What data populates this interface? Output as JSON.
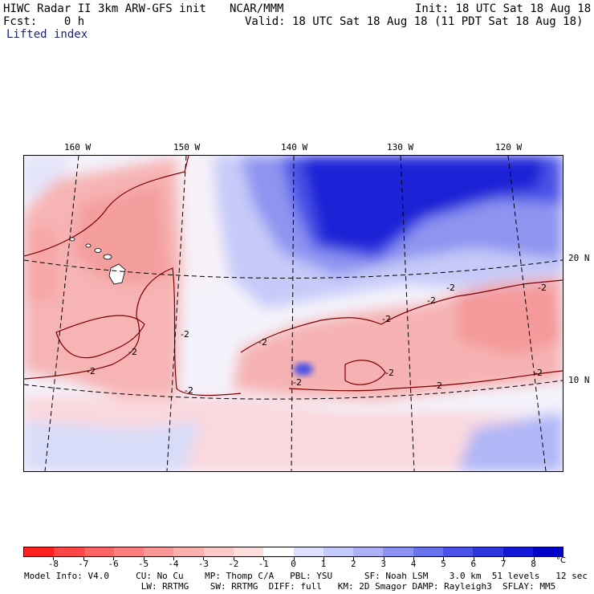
{
  "header": {
    "model_title": "HIWC Radar II 3km ARW-GFS init",
    "org": "NCAR/MMM",
    "init": "Init: 18 UTC Sat 18 Aug 18",
    "fcst": "Fcst:    0 h",
    "valid": "Valid: 18 UTC Sat 18 Aug 18 (11 PDT Sat 18 Aug 18)",
    "field": "Lifted index"
  },
  "map": {
    "longitudes": [
      "160 W",
      "150 W",
      "140 W",
      "130 W",
      "120 W"
    ],
    "latitudes": [
      "20 N",
      "10 N"
    ],
    "contour_value": "-2",
    "contour_color": "#800000",
    "land_fill": "#ffffff"
  },
  "colorbar": {
    "ticks": [
      "-8",
      "-7",
      "-6",
      "-5",
      "-4",
      "-3",
      "-2",
      "-1",
      "0",
      "1",
      "2",
      "3",
      "4",
      "5",
      "6",
      "7",
      "8"
    ],
    "unit": "°C",
    "colors": [
      "#ff2020",
      "#ff4646",
      "#ff6464",
      "#ff7e7e",
      "#fc9898",
      "#fdb0b0",
      "#fdc8c8",
      "#fedede",
      "#ffffff",
      "#dee0fd",
      "#c6c9fb",
      "#adb2f8",
      "#8d93f4",
      "#6b72ee",
      "#4a52e8",
      "#2f36e0",
      "#1218d6",
      "#0000c8"
    ]
  },
  "footer": {
    "line1": "Model Info: V4.0     CU: No Cu    MP: Thomp C/A   PBL: YSU      SF: Noah LSM    3.0 km  51 levels   12 sec",
    "line2": "                      LW: RRTMG    SW: RRTMG  DIFF: full   KM: 2D Smagor DAMP: Rayleigh3  SFLAY: MM5"
  }
}
